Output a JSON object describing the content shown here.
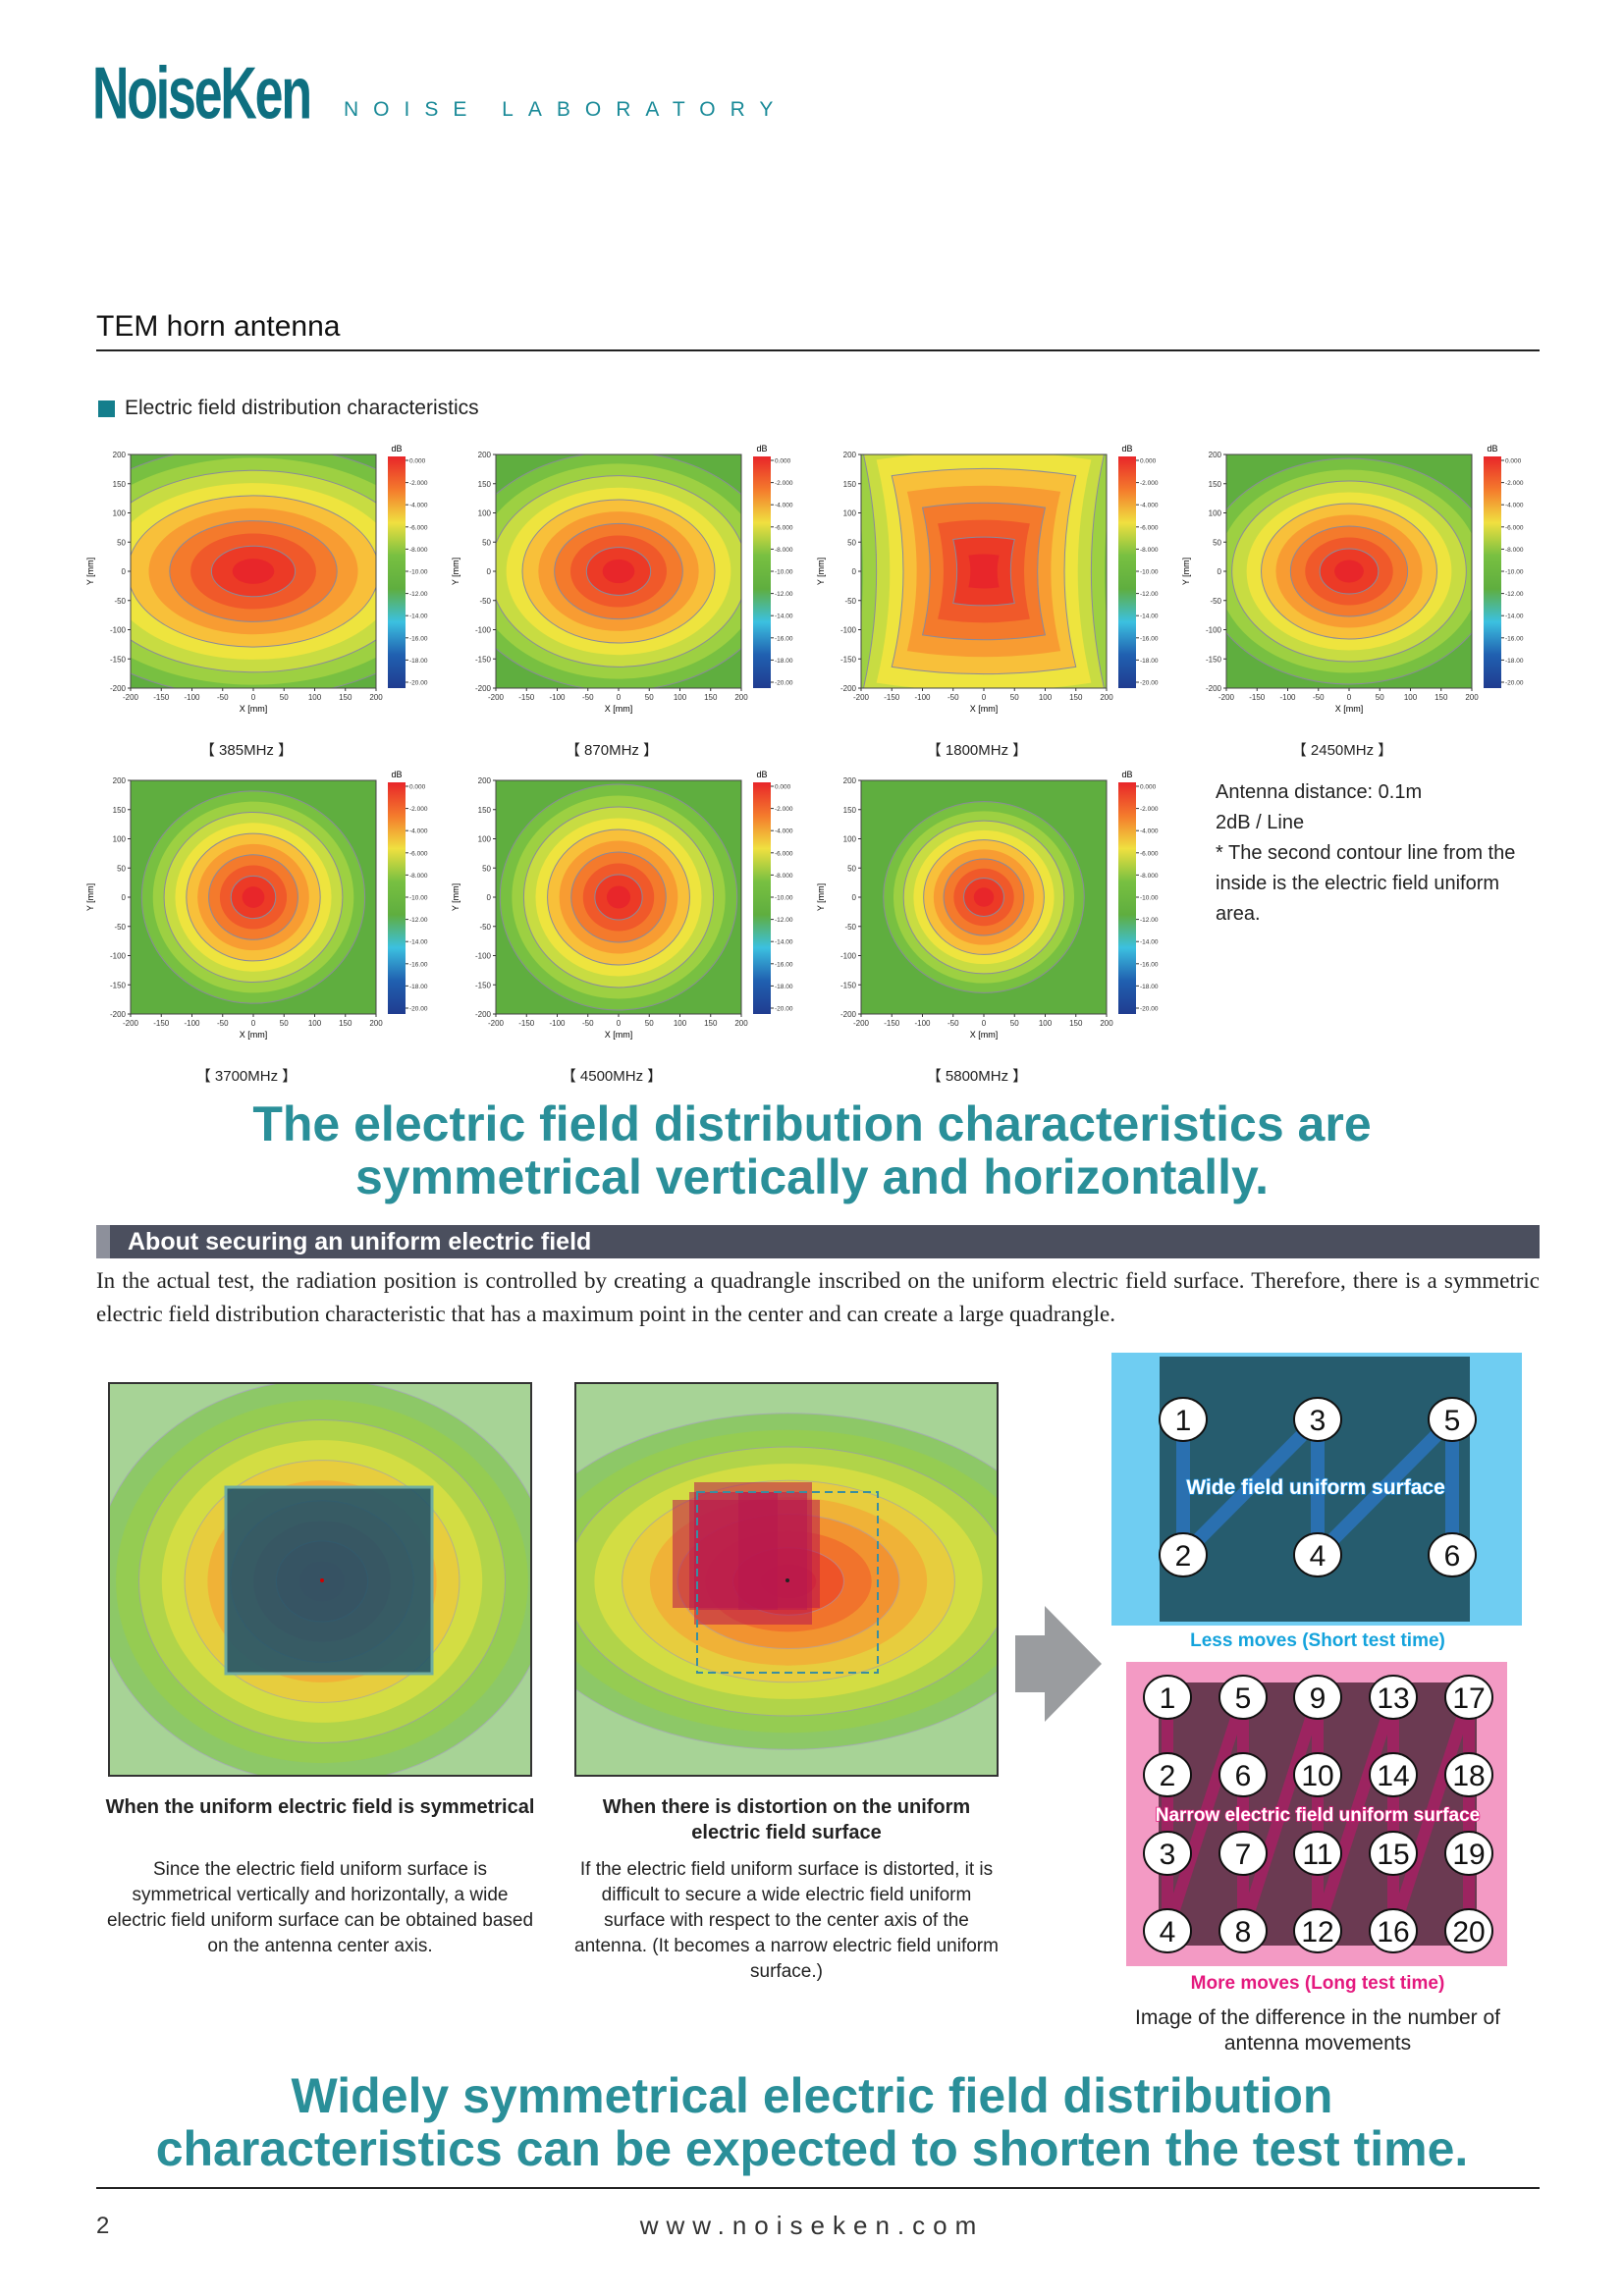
{
  "header": {
    "logo": "NoiseKen",
    "tagline": "NOISE LABORATORY"
  },
  "title": "TEM horn antenna",
  "section_label": "Electric field distribution characteristics",
  "chart_data": {
    "type": "heatmap",
    "xlabel": "X [mm]",
    "ylabel": "Y [mm]",
    "colorbar_label": "dB",
    "xlim": [
      -200,
      200
    ],
    "ylim": [
      -200,
      200
    ],
    "x_ticks": [
      "-200",
      "-150",
      "-100",
      "-50",
      "0",
      "50",
      "100",
      "150",
      "200"
    ],
    "y_ticks": [
      "200",
      "150",
      "100",
      "50",
      "0",
      "-50",
      "-100",
      "-150",
      "-200"
    ],
    "colorbar_ticks": [
      "0.000",
      "-2.000",
      "-4.000",
      "-6.000",
      "-8.000",
      "-10.00",
      "-12.00",
      "-14.00",
      "-16.00",
      "-18.00",
      "-20.00"
    ],
    "colorbar_range": [
      -20,
      0
    ],
    "panels": [
      {
        "caption": "【 385MHz 】",
        "frequency_mhz": 385
      },
      {
        "caption": "【 870MHz 】",
        "frequency_mhz": 870
      },
      {
        "caption": "【 1800MHz 】",
        "frequency_mhz": 1800
      },
      {
        "caption": "【 2450MHz 】",
        "frequency_mhz": 2450
      },
      {
        "caption": "【 3700MHz 】",
        "frequency_mhz": 3700
      },
      {
        "caption": "【 4500MHz 】",
        "frequency_mhz": 4500
      },
      {
        "caption": "【 5800MHz 】",
        "frequency_mhz": 5800
      }
    ]
  },
  "notes": [
    "Antenna distance: 0.1m",
    "2dB / Line",
    "* The second contour line from the inside is the electric field uniform area."
  ],
  "headline1": [
    "The electric field distribution characteristics are",
    "symmetrical vertically and horizontally."
  ],
  "section2_title": "About securing an uniform electric field",
  "paragraph": "In the actual test, the radiation position is controlled by creating a quadrangle inscribed on the uniform electric field surface. Therefore, there is a symmetric electric field distribution characteristic that has a maximum point in the center and can create a large quadrangle.",
  "figures": [
    {
      "title": "When the uniform electric field is symmetrical",
      "text": "Since the electric field uniform surface is symmetrical vertically and horizontally, a wide electric field uniform surface can be obtained based on the antenna center axis."
    },
    {
      "title": "When there is distortion on the uniform electric field surface",
      "text": "If the electric field uniform surface is distorted, it is difficult to secure a wide electric field uniform surface with respect to the center axis of the antenna. (It becomes a narrow electric field uniform surface.)"
    }
  ],
  "diagram": {
    "wide_label": "Wide field uniform surface",
    "wide_caption": "Less moves (Short test time)",
    "wide_points": [
      "1",
      "2",
      "3",
      "4",
      "5",
      "6"
    ],
    "narrow_label": "Narrow electric field uniform surface",
    "narrow_caption": "More moves (Long test time)",
    "narrow_points": [
      "1",
      "2",
      "3",
      "4",
      "5",
      "6",
      "7",
      "8",
      "9",
      "10",
      "11",
      "12",
      "13",
      "14",
      "15",
      "16",
      "17",
      "18",
      "19",
      "20"
    ],
    "caption": "Image of the difference in the number of antenna movements",
    "colors": {
      "blue": "#6fcdf2",
      "teal": "#265c6e",
      "pink": "#f39ac4",
      "plum": "#6b3a52",
      "magenta": "#e4197e"
    }
  },
  "headline2": [
    "Widely symmetrical electric field distribution",
    "characteristics can be expected to shorten the test time."
  ],
  "footer": {
    "page": "2",
    "url": "www.noiseken.com"
  }
}
